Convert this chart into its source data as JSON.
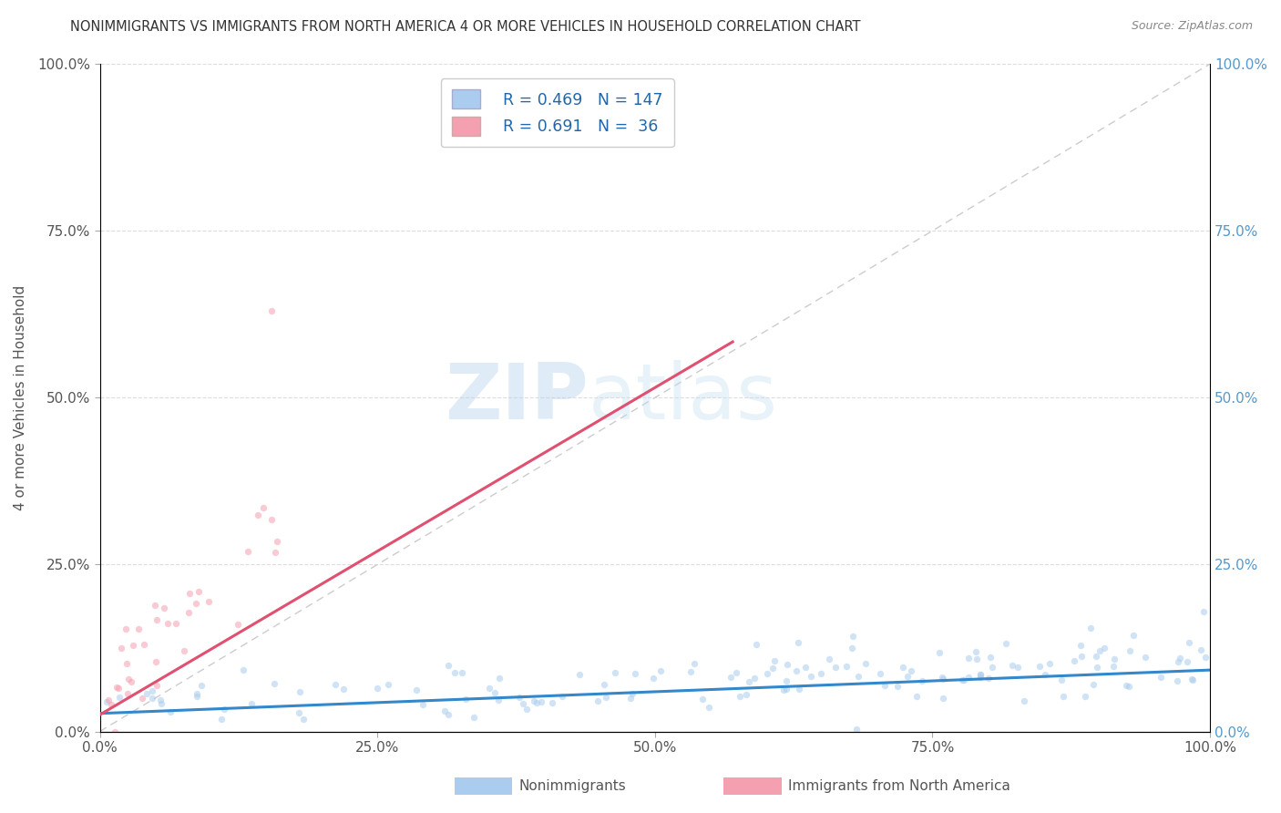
{
  "title": "NONIMMIGRANTS VS IMMIGRANTS FROM NORTH AMERICA 4 OR MORE VEHICLES IN HOUSEHOLD CORRELATION CHART",
  "source": "Source: ZipAtlas.com",
  "ylabel": "4 or more Vehicles in Household",
  "xlim": [
    0.0,
    1.0
  ],
  "ylim": [
    0.0,
    1.0
  ],
  "xticks": [
    0.0,
    0.25,
    0.5,
    0.75,
    1.0
  ],
  "yticks": [
    0.0,
    0.25,
    0.5,
    0.75,
    1.0
  ],
  "xticklabels": [
    "0.0%",
    "25.0%",
    "50.0%",
    "75.0%",
    "100.0%"
  ],
  "yticklabels": [
    "0.0%",
    "25.0%",
    "50.0%",
    "75.0%",
    "100.0%"
  ],
  "nonimmigrant_color": "#aaccee",
  "immigrant_color": "#f5a0b0",
  "nonimmigrant_R": 0.469,
  "nonimmigrant_N": 147,
  "immigrant_R": 0.691,
  "immigrant_N": 36,
  "nonimmigrant_line_color": "#3388cc",
  "immigrant_line_color": "#e05070",
  "ref_line_color": "#cccccc",
  "legend_label_1": "Nonimmigrants",
  "legend_label_2": "Immigrants from North America",
  "watermark_zip": "ZIP",
  "watermark_atlas": "atlas",
  "background_color": "#ffffff",
  "grid_color": "#dddddd",
  "title_color": "#333333",
  "axis_label_color": "#555555",
  "right_axis_color": "#5599cc",
  "scatter_alpha": 0.55,
  "scatter_size": 28
}
